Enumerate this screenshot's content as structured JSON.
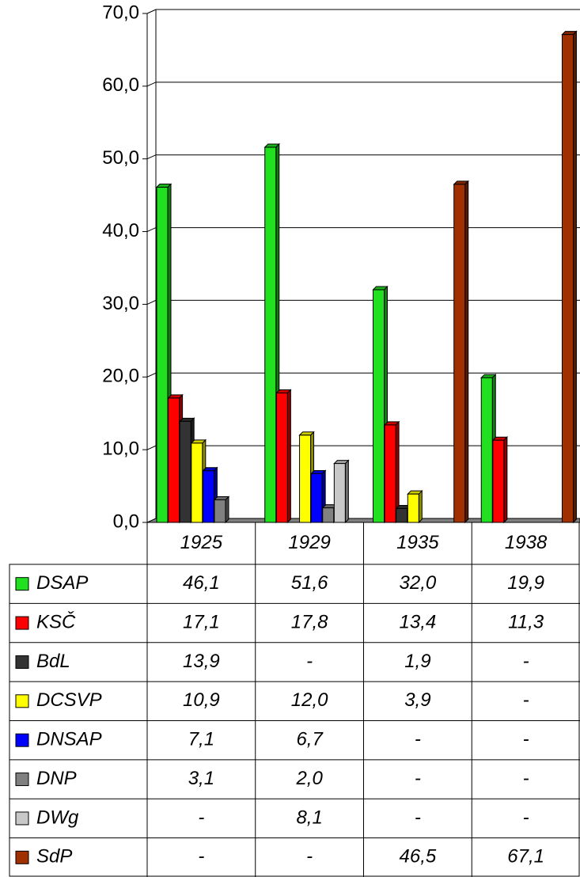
{
  "chart_data": {
    "type": "bar",
    "categories": [
      "1925",
      "1929",
      "1935",
      "1938"
    ],
    "ylim": [
      0,
      70
    ],
    "yticks": [
      {
        "value": 0,
        "label": "0,0"
      },
      {
        "value": 10,
        "label": "10,0"
      },
      {
        "value": 20,
        "label": "20,0"
      },
      {
        "value": 30,
        "label": "30,0"
      },
      {
        "value": 40,
        "label": "40,0"
      },
      {
        "value": 50,
        "label": "50,0"
      },
      {
        "value": 60,
        "label": "60,0"
      },
      {
        "value": 70,
        "label": "70,0"
      }
    ],
    "grid": true,
    "series": [
      {
        "name": "DSAP",
        "color": "#20e020",
        "values": [
          46.1,
          51.6,
          32.0,
          19.9
        ],
        "value_labels": [
          "46,1",
          "51,6",
          "32,0",
          "19,9"
        ]
      },
      {
        "name": "KSČ",
        "color": "#ff0000",
        "values": [
          17.1,
          17.8,
          13.4,
          11.3
        ],
        "value_labels": [
          "17,1",
          "17,8",
          "13,4",
          "11,3"
        ]
      },
      {
        "name": "BdL",
        "color": "#333333",
        "values": [
          13.9,
          null,
          1.9,
          null
        ],
        "value_labels": [
          "13,9",
          "-",
          "1,9",
          "-"
        ]
      },
      {
        "name": "DCSVP",
        "color": "#ffff00",
        "values": [
          10.9,
          12.0,
          3.9,
          null
        ],
        "value_labels": [
          "10,9",
          "12,0",
          "3,9",
          "-"
        ]
      },
      {
        "name": "DNSAP",
        "color": "#0000ff",
        "values": [
          7.1,
          6.7,
          null,
          null
        ],
        "value_labels": [
          "7,1",
          "6,7",
          "-",
          "-"
        ]
      },
      {
        "name": "DNP",
        "color": "#808080",
        "values": [
          3.1,
          2.0,
          null,
          null
        ],
        "value_labels": [
          "3,1",
          "2,0",
          "-",
          "-"
        ]
      },
      {
        "name": "DWg",
        "color": "#c8c8c8",
        "values": [
          null,
          8.1,
          null,
          null
        ],
        "value_labels": [
          "-",
          "8,1",
          "-",
          "-"
        ]
      },
      {
        "name": "SdP",
        "color": "#a03000",
        "values": [
          null,
          null,
          46.5,
          67.1
        ],
        "value_labels": [
          "-",
          "-",
          "46,5",
          "67,1"
        ]
      }
    ]
  }
}
